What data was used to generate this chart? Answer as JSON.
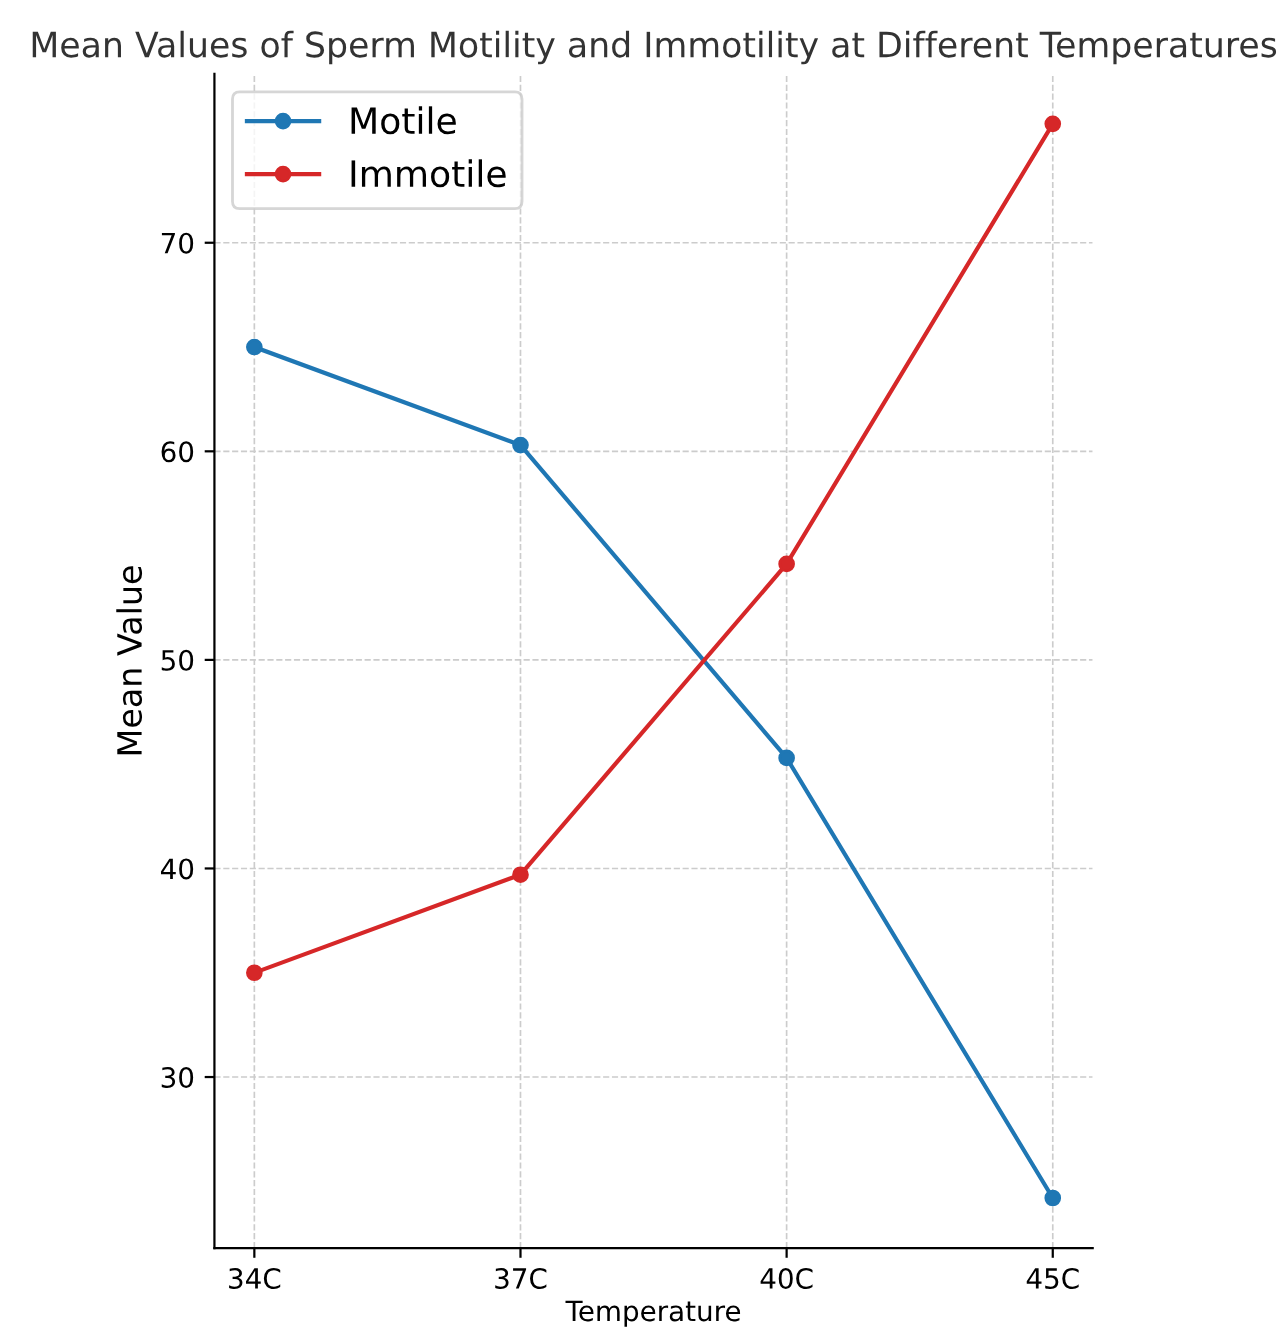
{
  "chart_data": {
    "type": "line",
    "title": "Mean Values of Sperm Motility and Immotility at Different Temperatures",
    "xlabel": "Temperature",
    "ylabel": "Mean Value",
    "categories": [
      "34C",
      "37C",
      "40C",
      "45C"
    ],
    "series": [
      {
        "name": "Motile",
        "color": "#1f77b4",
        "values": [
          65.0,
          60.3,
          45.3,
          24.2
        ]
      },
      {
        "name": "Immotile",
        "color": "#d62728",
        "values": [
          35.0,
          39.7,
          54.6,
          75.7
        ]
      }
    ],
    "ylim": [
      21.8,
      78.1
    ],
    "yticks": [
      30,
      40,
      50,
      60,
      70
    ],
    "grid": true,
    "legend": "top left",
    "marker": "circle",
    "line_style": "solid"
  }
}
